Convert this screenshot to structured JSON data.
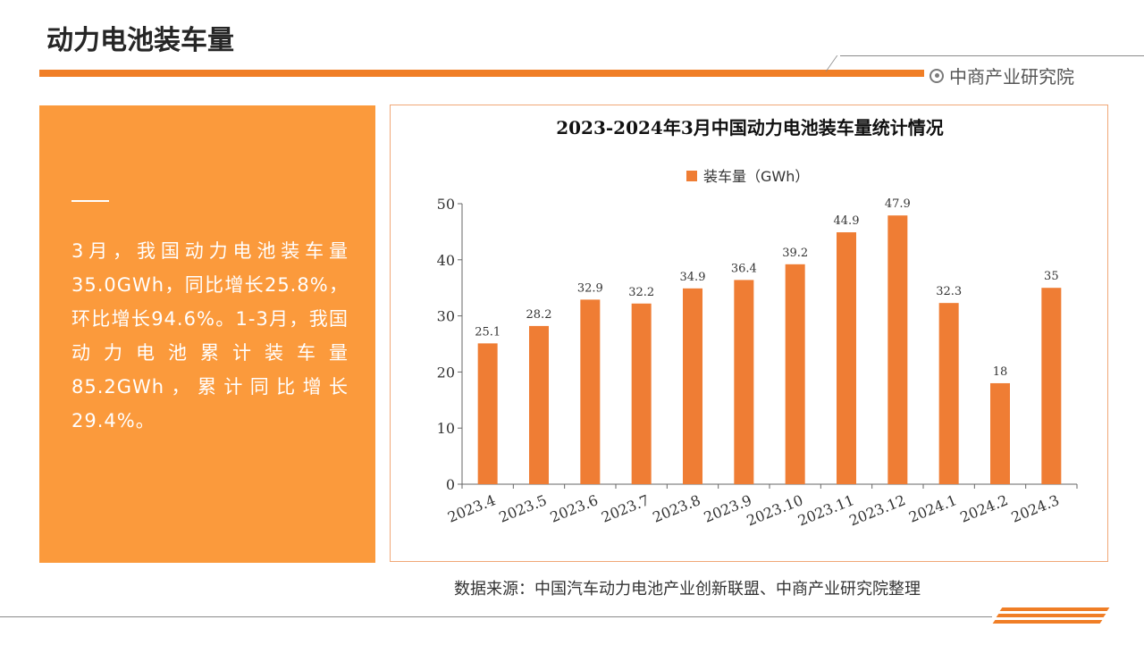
{
  "header": {
    "title": "动力电池装车量",
    "brand": "中商产业研究院"
  },
  "summary": {
    "text": "3月，我国动力电池装车量35.0GWh，同比增长25.8%，环比增长94.6%。1-3月，我国动力电池累计装车量85.2GWh，累计同比增长29.4%。"
  },
  "footer": {
    "source": "数据来源：中国汽车动力电池产业创新联盟、中商产业研究院整理"
  },
  "colors": {
    "accent": "#f07e26",
    "panel": "#fb9a3c",
    "bar": "#ef7d34",
    "frame": "#f0a777"
  },
  "chart_data": {
    "type": "bar",
    "title": "2023-2024年3月中国动力电池装车量统计情况",
    "categories": [
      "2023.4",
      "2023.5",
      "2023.6",
      "2023.7",
      "2023.8",
      "2023.9",
      "2023.10",
      "2023.11",
      "2023.12",
      "2024.1",
      "2024.2",
      "2024.3"
    ],
    "series": [
      {
        "name": "装车量（GWh）",
        "values": [
          25.1,
          28.2,
          32.9,
          32.2,
          34.9,
          36.4,
          39.2,
          44.9,
          47.9,
          32.3,
          18,
          35
        ]
      }
    ],
    "data_labels": [
      "25.1",
      "28.2",
      "32.9",
      "32.2",
      "34.9",
      "36.4",
      "39.2",
      "44.9",
      "47.9",
      "32.3",
      "18",
      "35"
    ],
    "ylim": [
      0,
      50
    ],
    "yticks": [
      0,
      10,
      20,
      30,
      40,
      50
    ],
    "xlabel": "",
    "ylabel": "",
    "legend_position": "top-center",
    "grid": false
  }
}
